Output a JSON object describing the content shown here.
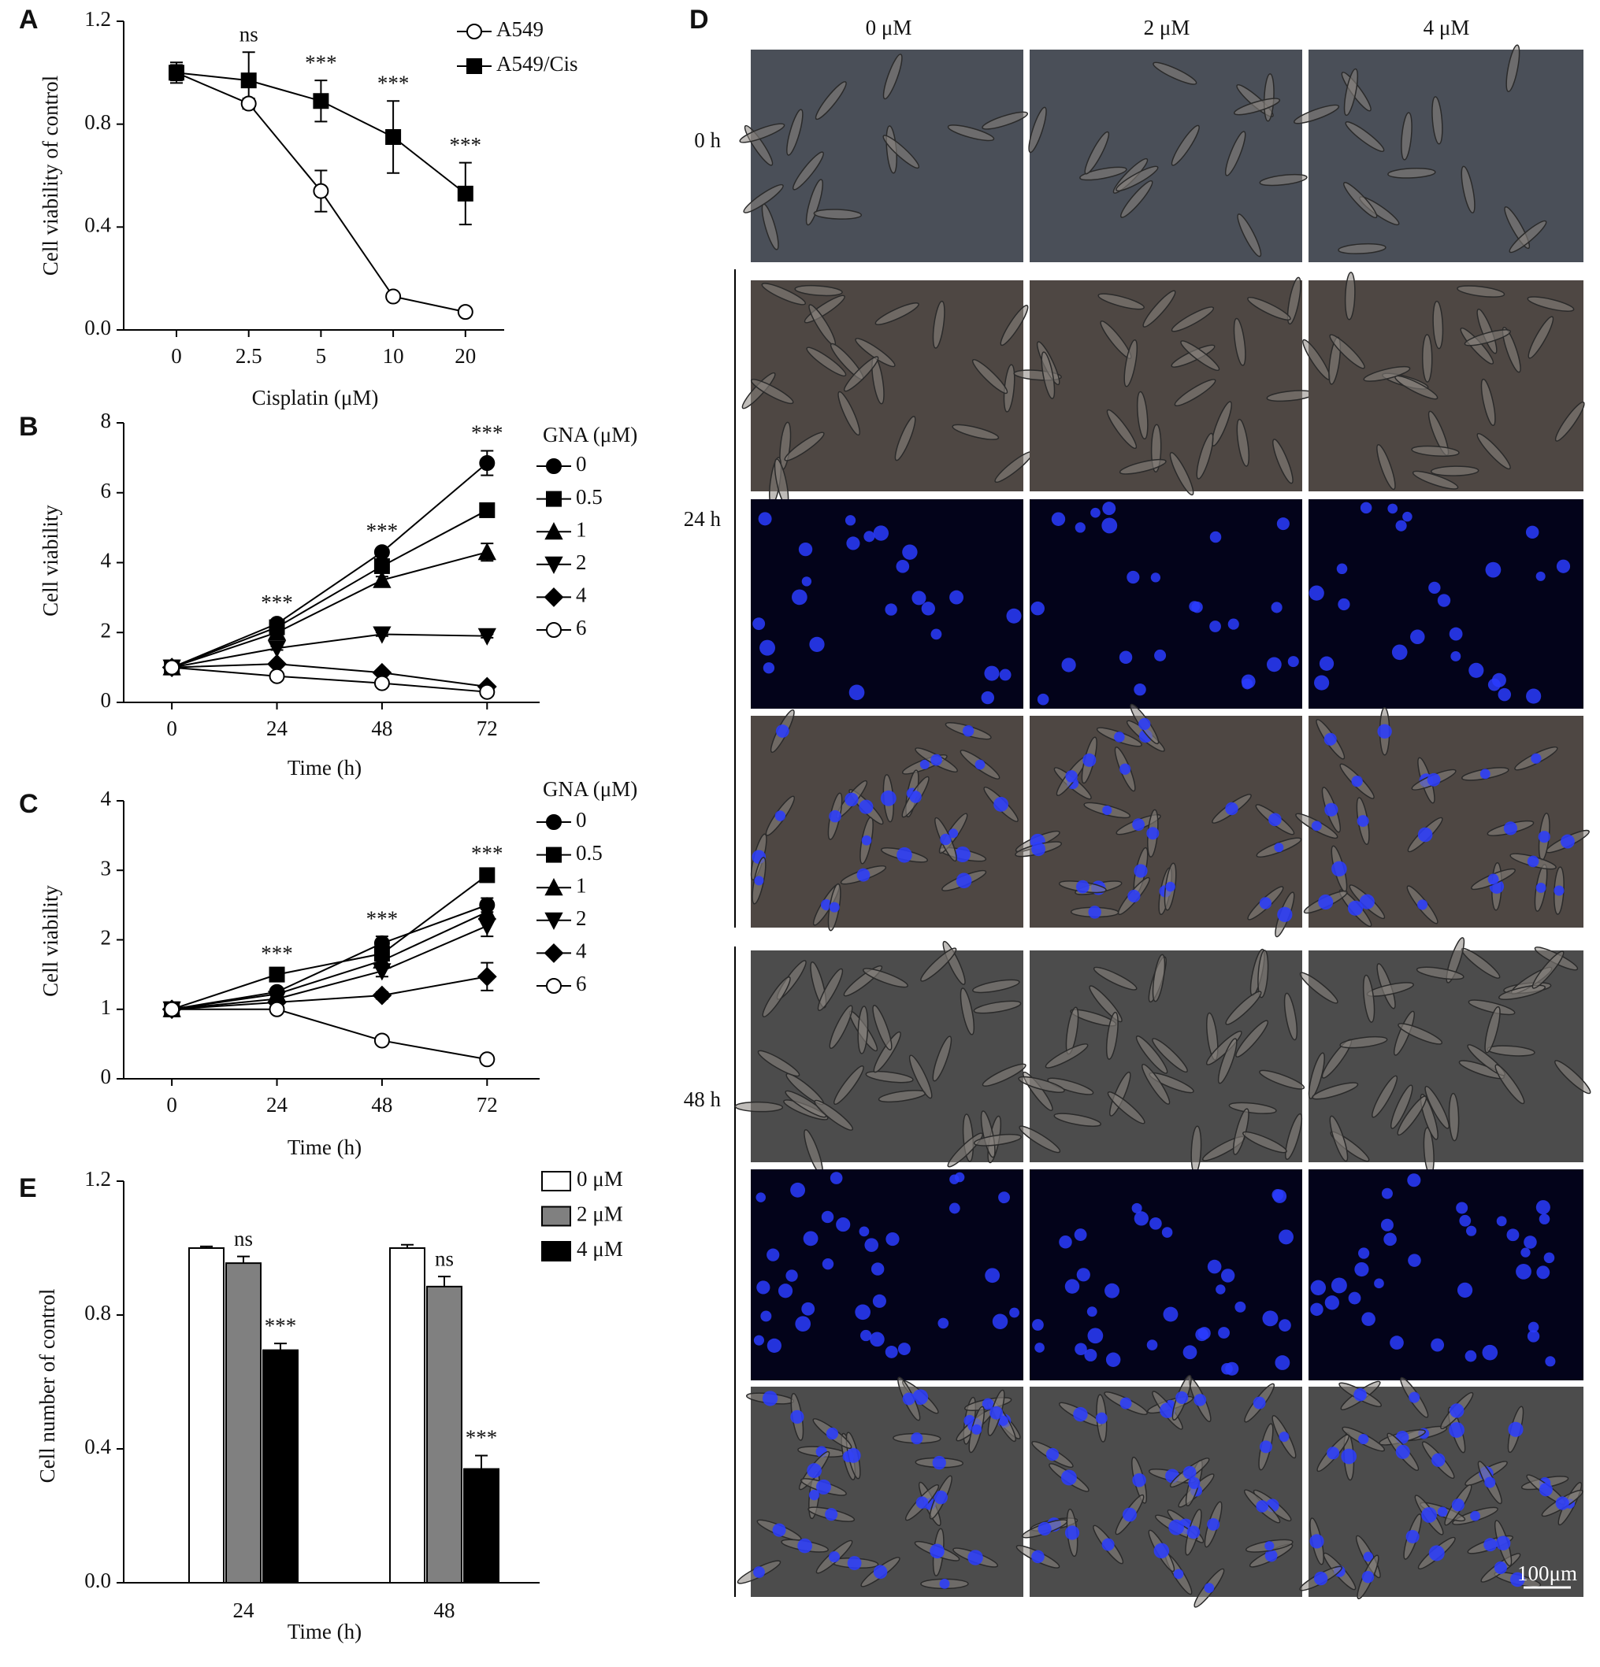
{
  "chart_data": [
    {
      "panel": "A",
      "type": "line",
      "x_label": "Cisplatin (μM)",
      "y_label": "Cell viability of control",
      "categories": [
        "0",
        "2.5",
        "5",
        "10",
        "20"
      ],
      "ylim": [
        0,
        1.2
      ],
      "yticks": [
        {
          "value": 0,
          "label": "0.0"
        },
        0.4,
        0.8,
        1.2
      ],
      "series": [
        {
          "name": "A549",
          "color": "#000000",
          "marker": "circle-open",
          "values": [
            1.0,
            0.88,
            0.54,
            0.13,
            0.07
          ],
          "errors": [
            0.03,
            0.02,
            0.08,
            0.01,
            0.01
          ]
        },
        {
          "name": "A549/Cis",
          "color": "#000000",
          "marker": "square",
          "values": [
            1.0,
            0.97,
            0.89,
            0.75,
            0.53
          ],
          "errors": [
            0.04,
            0.11,
            0.08,
            0.14,
            0.12
          ]
        }
      ],
      "annotations": [
        null,
        "ns",
        "***",
        "***",
        "***"
      ]
    },
    {
      "panel": "B",
      "type": "line",
      "x_label": "Time (h)",
      "y_label": "Cell viability",
      "legend_title": "GNA (μM)",
      "x": [
        0,
        24,
        48,
        72
      ],
      "xlim": [
        -11,
        84
      ],
      "xticks": [
        0,
        24,
        48,
        72
      ],
      "ylim": [
        0,
        8
      ],
      "yticks": [
        0,
        2,
        4,
        6,
        8
      ],
      "series": [
        {
          "name": "0",
          "color": "#000000",
          "marker": "circle",
          "values": [
            1,
            2.25,
            4.3,
            6.85
          ],
          "errors": [
            0.05,
            0.1,
            0.1,
            0.35
          ]
        },
        {
          "name": "0.5",
          "color": "#000000",
          "marker": "square",
          "values": [
            1,
            2.15,
            3.9,
            5.5
          ],
          "errors": [
            0.05,
            0.1,
            0.1,
            0.1
          ]
        },
        {
          "name": "1",
          "color": "#000000",
          "marker": "triangle-up",
          "values": [
            1,
            2.0,
            3.5,
            4.3
          ],
          "errors": [
            0.05,
            0.1,
            0.1,
            0.25
          ]
        },
        {
          "name": "2",
          "color": "#000000",
          "marker": "triangle-down",
          "values": [
            1,
            1.55,
            1.95,
            1.9
          ],
          "errors": [
            0.05,
            0.05,
            0.05,
            0.05
          ]
        },
        {
          "name": "4",
          "color": "#000000",
          "marker": "diamond",
          "values": [
            1,
            1.1,
            0.85,
            0.45
          ],
          "errors": [
            0.05,
            0.05,
            0.05,
            0.05
          ]
        },
        {
          "name": "6",
          "color": "#000000",
          "marker": "circle-open",
          "values": [
            1,
            0.75,
            0.55,
            0.3
          ],
          "errors": [
            0.05,
            0.05,
            0.05,
            0.05
          ]
        }
      ],
      "annotations": [
        null,
        "***",
        "***",
        "***"
      ]
    },
    {
      "panel": "C",
      "type": "line",
      "x_label": "Time (h)",
      "y_label": "Cell viability",
      "legend_title": "GNA (μM)",
      "x": [
        0,
        24,
        48,
        72
      ],
      "xlim": [
        -11,
        84
      ],
      "xticks": [
        0,
        24,
        48,
        72
      ],
      "ylim": [
        0,
        4
      ],
      "yticks": [
        0,
        1,
        2,
        3,
        4
      ],
      "series": [
        {
          "name": "0",
          "color": "#000000",
          "marker": "circle",
          "values": [
            1,
            1.25,
            1.95,
            2.5
          ],
          "errors": [
            0.03,
            0.05,
            0.1,
            0.1
          ]
        },
        {
          "name": "0.5",
          "color": "#000000",
          "marker": "square",
          "values": [
            1,
            1.5,
            1.8,
            2.93
          ],
          "errors": [
            0.03,
            0.05,
            0.08,
            0.06
          ]
        },
        {
          "name": "1",
          "color": "#000000",
          "marker": "triangle-up",
          "values": [
            1,
            1.22,
            1.7,
            2.4
          ],
          "errors": [
            0.03,
            0.05,
            0.08,
            0.12
          ]
        },
        {
          "name": "2",
          "color": "#000000",
          "marker": "triangle-down",
          "values": [
            1,
            1.15,
            1.55,
            2.2
          ],
          "errors": [
            0.03,
            0.05,
            0.08,
            0.15
          ]
        },
        {
          "name": "4",
          "color": "#000000",
          "marker": "diamond",
          "values": [
            1,
            1.1,
            1.2,
            1.47
          ],
          "errors": [
            0.03,
            0.04,
            0.05,
            0.2
          ]
        },
        {
          "name": "6",
          "color": "#000000",
          "marker": "circle-open",
          "values": [
            1,
            1.0,
            0.55,
            0.28
          ],
          "errors": [
            0.03,
            0.03,
            0.03,
            0.06
          ]
        }
      ],
      "annotations": [
        null,
        "***",
        "***",
        "***"
      ]
    },
    {
      "panel": "E",
      "type": "bar",
      "x_label": "Time (h)",
      "y_label": "Cell number of control",
      "categories": [
        "24",
        "48"
      ],
      "ylim": [
        0,
        1.2
      ],
      "yticks": [
        {
          "value": 0,
          "label": "0.0"
        },
        0.4,
        0.8,
        1.2
      ],
      "series": [
        {
          "name": "0 μM",
          "color": "#ffffff",
          "values": [
            1.0,
            1.0
          ],
          "errors": [
            0.005,
            0.01
          ],
          "annotations": [
            null,
            null
          ]
        },
        {
          "name": "2 μM",
          "color": "#808080",
          "values": [
            0.955,
            0.885
          ],
          "errors": [
            0.02,
            0.03
          ],
          "annotations": [
            "ns",
            "ns"
          ]
        },
        {
          "name": "4 μM",
          "color": "#000000",
          "values": [
            0.695,
            0.34
          ],
          "errors": [
            0.02,
            0.04
          ],
          "annotations": [
            "***",
            "***"
          ]
        }
      ]
    }
  ],
  "panel_d": {
    "label": "D",
    "columns": [
      "0 μM",
      "2 μM",
      "4 μM"
    ],
    "rows": [
      "0 h",
      "24 h",
      "48 h"
    ],
    "scale_bar": "100μm"
  }
}
